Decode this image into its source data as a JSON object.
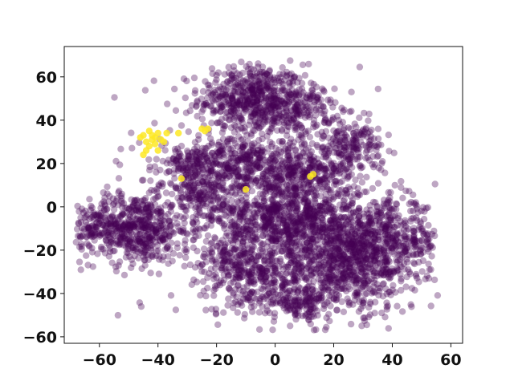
{
  "chart_data": {
    "type": "scatter",
    "title": "",
    "xlabel": "",
    "ylabel": "",
    "xlim": [
      -72,
      64
    ],
    "ylim": [
      -63,
      74
    ],
    "xticks": [
      -60,
      -40,
      -20,
      0,
      20,
      40,
      60
    ],
    "yticks": [
      -60,
      -40,
      -20,
      0,
      20,
      40,
      60
    ],
    "x_tick_labels": [
      "−60",
      "−40",
      "−20",
      "0",
      "20",
      "40",
      "60"
    ],
    "y_tick_labels": [
      "−60",
      "−40",
      "−20",
      "0",
      "20",
      "40",
      "60"
    ],
    "grid": false,
    "legend": "none",
    "colors": {
      "class_0": "#440154",
      "class_1": "#fde725"
    },
    "series": [
      {
        "label_value": 0,
        "color": "#440154",
        "clusters": [
          {
            "cx": -8,
            "cy": 50,
            "sx": 9,
            "sy": 8,
            "n": 520
          },
          {
            "cx": 8,
            "cy": 45,
            "sx": 6,
            "sy": 6,
            "n": 180
          },
          {
            "cx": -48,
            "cy": -10,
            "sx": 9,
            "sy": 8,
            "n": 520
          },
          {
            "cx": -62,
            "cy": -8,
            "sx": 5,
            "sy": 5,
            "n": 90
          },
          {
            "cx": 5,
            "cy": -5,
            "sx": 12,
            "sy": 10,
            "n": 700
          },
          {
            "cx": 25,
            "cy": -25,
            "sx": 12,
            "sy": 12,
            "n": 800
          },
          {
            "cx": 40,
            "cy": -15,
            "sx": 8,
            "sy": 9,
            "n": 320
          },
          {
            "cx": 25,
            "cy": 28,
            "sx": 6,
            "sy": 6,
            "n": 200
          },
          {
            "cx": -28,
            "cy": 20,
            "sx": 6,
            "sy": 5,
            "n": 160
          },
          {
            "cx": -25,
            "cy": 5,
            "sx": 5,
            "sy": 6,
            "n": 140
          },
          {
            "cx": -10,
            "cy": 20,
            "sx": 8,
            "sy": 6,
            "n": 260
          },
          {
            "cx": 10,
            "cy": 15,
            "sx": 8,
            "sy": 6,
            "n": 220
          },
          {
            "cx": 10,
            "cy": -45,
            "sx": 4,
            "sy": 4,
            "n": 90
          },
          {
            "cx": -15,
            "cy": -25,
            "sx": 6,
            "sy": 8,
            "n": 180
          },
          {
            "cx": -2,
            "cy": -35,
            "sx": 8,
            "sy": 8,
            "n": 240
          },
          {
            "cx": -5,
            "cy": 0,
            "sx": 20,
            "sy": 25,
            "n": 500
          }
        ]
      },
      {
        "label_value": 1,
        "color": "#fde725",
        "points": [
          [
            -45,
            33
          ],
          [
            -43,
            35
          ],
          [
            -41,
            32
          ],
          [
            -44,
            30
          ],
          [
            -42,
            31
          ],
          [
            -40,
            34
          ],
          [
            -46,
            32
          ],
          [
            -43,
            28
          ],
          [
            -41,
            29
          ],
          [
            -39,
            31
          ],
          [
            -44,
            26
          ],
          [
            -45,
            24
          ],
          [
            -40,
            26
          ],
          [
            -38,
            30
          ],
          [
            -42,
            33
          ],
          [
            -37,
            34
          ],
          [
            -33,
            34
          ],
          [
            -25,
            36
          ],
          [
            -24,
            35
          ],
          [
            -23,
            36
          ],
          [
            12,
            14
          ],
          [
            13,
            15
          ],
          [
            -10,
            8
          ],
          [
            -32,
            13
          ]
        ]
      }
    ]
  }
}
